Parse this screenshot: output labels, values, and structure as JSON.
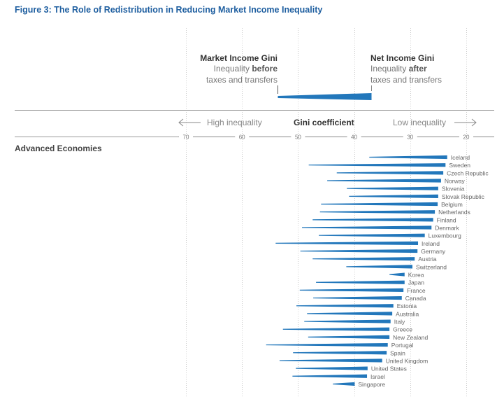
{
  "title": "Figure 3: The Role of Redistribution in Reducing Market Income Inequality",
  "legend": {
    "market_title": "Market Income Gini",
    "market_line1_prefix": "Inequality ",
    "market_line1_bold": "before",
    "market_line2": "taxes and transfers",
    "net_title": "Net Income Gini",
    "net_line1_prefix": "Inequality ",
    "net_line1_bold": "after",
    "net_line2": "taxes and transfers"
  },
  "axis_header": {
    "left_label": "High inequality",
    "center_label": "Gini coefficient",
    "right_label": "Low inequality"
  },
  "group_label": "Advanced Economies",
  "colors": {
    "title": "#1f5fa0",
    "bar": "#2277bb",
    "text": "#333333",
    "muted": "#777777",
    "rule": "#888888",
    "grid": "#cccccc"
  },
  "chart_data": {
    "type": "bar",
    "subtype": "range-wedge",
    "title": "Figure 3: The Role of Redistribution in Reducing Market Income Inequality",
    "xlabel": "Gini coefficient",
    "xlim": [
      75,
      15
    ],
    "x_reversed": true,
    "xticks": [
      70,
      60,
      50,
      40,
      30,
      20
    ],
    "grid": true,
    "series": [
      {
        "name": "Market Income Gini (before taxes and transfers)",
        "key": "market"
      },
      {
        "name": "Net Income Gini (after taxes and transfers)",
        "key": "net"
      }
    ],
    "legend_example": {
      "market": 48.0,
      "net": 37.0
    },
    "categories": [
      "Iceland",
      "Sweden",
      "Czech Republic",
      "Norway",
      "Slovenia",
      "Slovak Republic",
      "Belgium",
      "Netherlands",
      "Finland",
      "Denmark",
      "Luxembourg",
      "Ireland",
      "Germany",
      "Austria",
      "Switzerland",
      "Korea",
      "Japan",
      "France",
      "Canada",
      "Estonia",
      "Australia",
      "Italy",
      "Greece",
      "New Zealand",
      "Portugal",
      "Spain",
      "United Kingdom",
      "United States",
      "Israel",
      "Singapore"
    ],
    "market": [
      37.3,
      48.1,
      43.1,
      44.8,
      41.3,
      40.9,
      45.9,
      46.1,
      47.4,
      49.3,
      46.3,
      54.0,
      49.6,
      47.4,
      41.4,
      33.7,
      46.8,
      49.7,
      47.3,
      50.3,
      48.4,
      48.9,
      52.7,
      48.2,
      55.7,
      50.9,
      53.3,
      50.4,
      51.0,
      43.8
    ],
    "net": [
      23.4,
      23.7,
      24.1,
      24.5,
      25.0,
      25.0,
      25.1,
      25.6,
      25.9,
      26.2,
      27.4,
      28.6,
      28.7,
      29.2,
      29.6,
      31.0,
      31.0,
      31.2,
      31.5,
      33.0,
      33.2,
      33.5,
      33.7,
      33.7,
      34.0,
      34.2,
      35.0,
      37.6,
      37.7,
      39.9
    ]
  }
}
